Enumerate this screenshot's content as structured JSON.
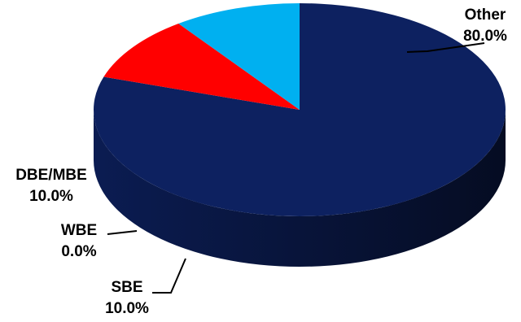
{
  "chart_data": {
    "type": "pie",
    "style": "3d",
    "slices": [
      {
        "label": "Other",
        "percent_label": "80.0%",
        "value": 80.0,
        "color": "#0D2160"
      },
      {
        "label": "SBE",
        "percent_label": "10.0%",
        "value": 10.0,
        "color": "#FF0000"
      },
      {
        "label": "WBE",
        "percent_label": "0.0%",
        "value": 0.0,
        "color": "#6A1B9A"
      },
      {
        "label": "DBE/MBE",
        "percent_label": "10.0%",
        "value": 10.0,
        "color": "#00B0F0"
      }
    ],
    "legend": "none",
    "data_labels": "outside with leader lines"
  }
}
